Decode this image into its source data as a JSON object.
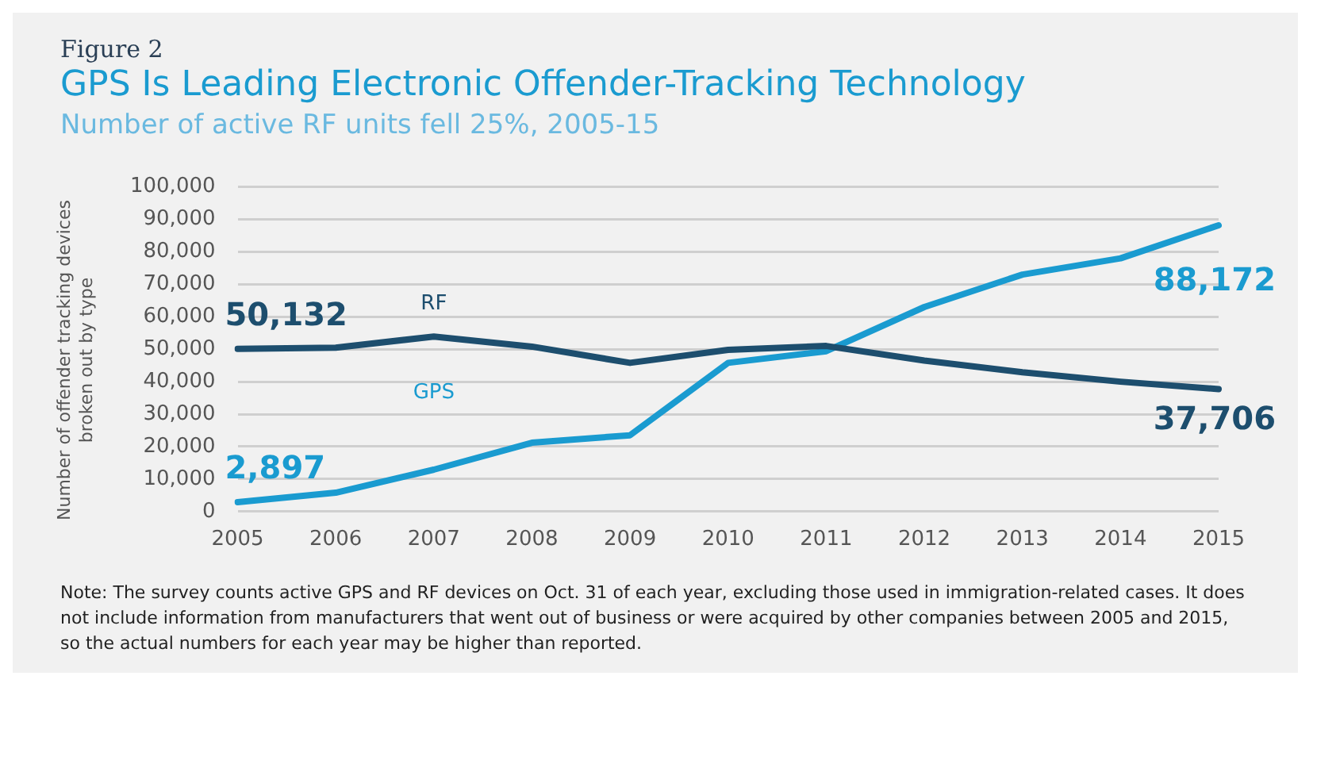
{
  "chart_data": {
    "type": "line",
    "title": "GPS Is Leading Electronic Offender-Tracking Technology",
    "subtitle": "Number of active RF units fell 25%, 2005-15",
    "ylabel": "Number of offender tracking devices broken out by type",
    "annotations": [
      "Figure 2",
      "Note: The survey counts active GPS and RF devices on Oct. 31 of each year, excluding those used in immigration-related cases. It does not include information from manufacturers that went out of business or were acquired by other companies between 2005 and 2015, so the actual numbers for each year may be higher than reported."
    ],
    "categories": [
      "2005",
      "2006",
      "2007",
      "2008",
      "2009",
      "2010",
      "2011",
      "2012",
      "2013",
      "2014",
      "2015"
    ],
    "series": [
      {
        "name": "RF",
        "color": "#1d4e6e",
        "values": [
          50132,
          50500,
          53900,
          50800,
          45800,
          49800,
          51000,
          46500,
          42900,
          40000,
          37706
        ],
        "value_labels": [
          "50,132",
          null,
          null,
          null,
          null,
          null,
          null,
          null,
          null,
          null,
          "37,706"
        ]
      },
      {
        "name": "GPS",
        "color": "#1a9bd0",
        "values": [
          2897,
          5800,
          12900,
          21200,
          23500,
          45800,
          49400,
          63000,
          73000,
          78000,
          88172
        ],
        "value_labels": [
          "2,897",
          null,
          null,
          null,
          null,
          null,
          null,
          null,
          null,
          null,
          "88,172"
        ]
      }
    ],
    "ylim": [
      0,
      100000
    ],
    "yticks": [
      0,
      {
        "value": 10000,
        "label": "10,000"
      },
      {
        "value": 20000,
        "label": "20,000"
      },
      {
        "value": 30000,
        "label": "30,000"
      },
      {
        "value": 40000,
        "label": "40,000"
      },
      {
        "value": 50000,
        "label": "50,000"
      },
      {
        "value": 60000,
        "label": "60,000"
      },
      {
        "value": 70000,
        "label": "70,000"
      },
      {
        "value": 80000,
        "label": "80,000"
      },
      {
        "value": 90000,
        "label": "90,000"
      },
      {
        "value": 100000,
        "label": "100,000"
      }
    ],
    "grid": "y",
    "legend": false,
    "marker": "none",
    "line_style": "solid"
  }
}
